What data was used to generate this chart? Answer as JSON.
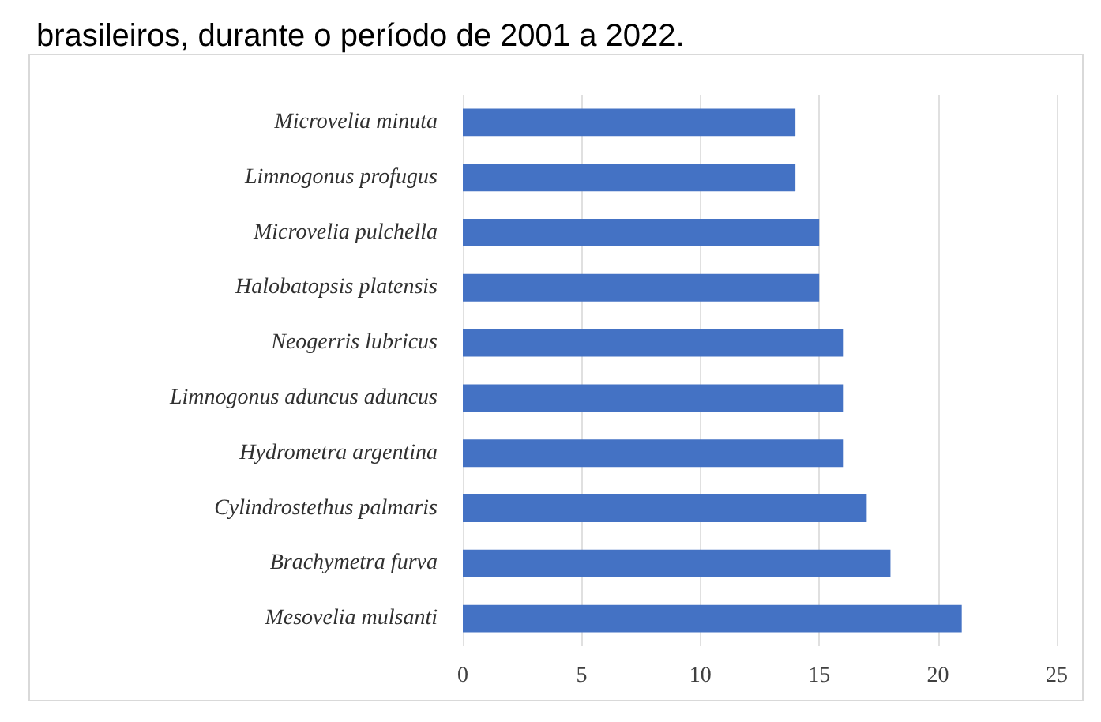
{
  "chart_data": {
    "type": "bar",
    "orientation": "horizontal",
    "title": "brasileiros, durante o período de 2001 a 2022.",
    "categories": [
      "Microvelia minuta",
      "Limnogonus profugus",
      "Microvelia pulchella",
      "Halobatopsis platensis",
      "Neogerris lubricus",
      "Limnogonus aduncus aduncus",
      "Hydrometra argentina",
      "Cylindrostethus palmaris",
      "Brachymetra furva",
      "Mesovelia mulsanti"
    ],
    "values": [
      14,
      14,
      15,
      15,
      16,
      16,
      16,
      17,
      18,
      21
    ],
    "color": "#4472c4",
    "xlim": [
      0,
      25
    ],
    "xticks": [
      0,
      5,
      10,
      15,
      20,
      25
    ],
    "grid": "x"
  }
}
